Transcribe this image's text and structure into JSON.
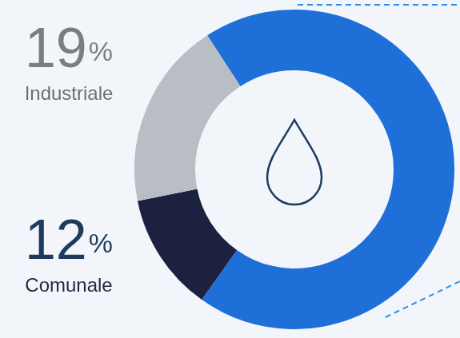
{
  "chart_data": {
    "type": "doughnut",
    "categories": [
      null,
      "Comunale",
      "Industriale"
    ],
    "values": [
      69,
      12,
      19
    ],
    "value_labels": [
      null,
      "12%",
      "19%"
    ],
    "colors": [
      "#1f6fd8",
      "#1c2140",
      "#b9bdc4"
    ]
  }
}
